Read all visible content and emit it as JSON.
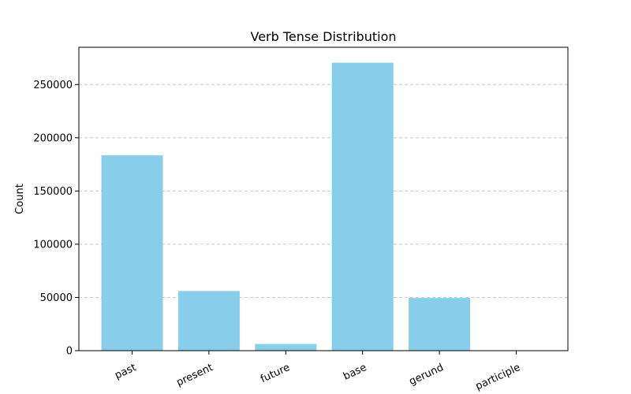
{
  "chart_data": {
    "type": "bar",
    "title": "Verb Tense Distribution",
    "xlabel": "",
    "ylabel": "Count",
    "categories": [
      "past",
      "present",
      "future",
      "base",
      "gerund",
      "participle"
    ],
    "values": [
      183500,
      56000,
      6300,
      270500,
      49500,
      0
    ],
    "ylim": [
      0,
      285000
    ],
    "yticks": [
      0,
      50000,
      100000,
      150000,
      200000,
      250000
    ],
    "ytick_labels": [
      "0",
      "50000",
      "100000",
      "150000",
      "200000",
      "250000"
    ],
    "grid": {
      "y": true,
      "x": false,
      "style": "dashed"
    },
    "bar_color": "#87ceeb",
    "grid_color": "#c8c8c8",
    "xtick_rotation": 25
  }
}
